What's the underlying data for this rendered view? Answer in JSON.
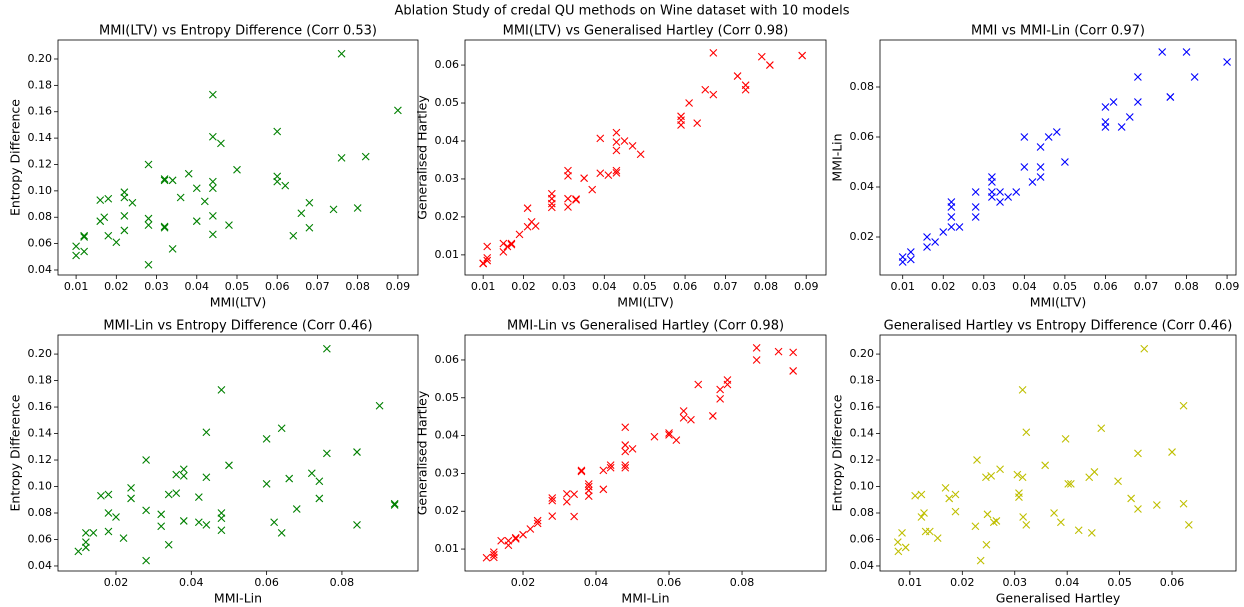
{
  "title": "Ablation Study of credal QU methods on Wine dataset with 10 models",
  "chart_data": [
    {
      "type": "scatter",
      "title": "MMI(LTV) vs Entropy Difference (Corr 0.53)",
      "x_label": "MMI(LTV)",
      "y_label": "Entropy Difference",
      "color": "#008000",
      "x": [
        0.01,
        0.01,
        0.012,
        0.012,
        0.012,
        0.016,
        0.016,
        0.017,
        0.018,
        0.018,
        0.02,
        0.022,
        0.022,
        0.022,
        0.022,
        0.024,
        0.028,
        0.028,
        0.028,
        0.028,
        0.032,
        0.032,
        0.032,
        0.032,
        0.034,
        0.034,
        0.036,
        0.038,
        0.04,
        0.04,
        0.042,
        0.044,
        0.044,
        0.044,
        0.044,
        0.044,
        0.044,
        0.046,
        0.048,
        0.05,
        0.06,
        0.06,
        0.06,
        0.062,
        0.064,
        0.066,
        0.068,
        0.068,
        0.074,
        0.076,
        0.076,
        0.08,
        0.082,
        0.09
      ],
      "values": [
        0.058,
        0.051,
        0.065,
        0.054,
        0.066,
        0.077,
        0.093,
        0.08,
        0.094,
        0.066,
        0.061,
        0.099,
        0.095,
        0.081,
        0.07,
        0.091,
        0.12,
        0.079,
        0.074,
        0.044,
        0.108,
        0.109,
        0.073,
        0.072,
        0.108,
        0.056,
        0.095,
        0.113,
        0.102,
        0.077,
        0.092,
        0.173,
        0.141,
        0.107,
        0.102,
        0.081,
        0.067,
        0.136,
        0.074,
        0.116,
        0.145,
        0.111,
        0.107,
        0.104,
        0.066,
        0.083,
        0.091,
        0.072,
        0.086,
        0.204,
        0.125,
        0.087,
        0.126,
        0.161
      ],
      "xlim": [
        0.0055,
        0.095
      ],
      "ylim": [
        0.0362,
        0.2144
      ],
      "xticks": [
        0.01,
        0.02,
        0.03,
        0.04,
        0.05,
        0.06,
        0.07,
        0.08,
        0.09
      ],
      "yticks": [
        0.04,
        0.06,
        0.08,
        {
          "value": 0.1,
          "label": "0.10"
        },
        0.12,
        0.14,
        0.16,
        0.18,
        {
          "value": 0.2,
          "label": "0.20"
        }
      ]
    },
    {
      "type": "scatter",
      "title": "MMI(LTV) vs Generalised Hartley (Corr 0.98)",
      "x_label": "MMI(LTV)",
      "y_label": "Generalised Hartley",
      "color": "#ff0000",
      "x": [
        0.01,
        0.01,
        0.011,
        0.011,
        0.011,
        0.015,
        0.015,
        0.016,
        0.017,
        0.017,
        0.019,
        0.021,
        0.021,
        0.022,
        0.023,
        0.027,
        0.027,
        0.027,
        0.027,
        0.031,
        0.031,
        0.031,
        0.031,
        0.033,
        0.033,
        0.035,
        0.037,
        0.039,
        0.039,
        0.041,
        0.043,
        0.043,
        0.043,
        0.043,
        0.043,
        0.045,
        0.047,
        0.049,
        0.059,
        0.059,
        0.059,
        0.061,
        0.063,
        0.065,
        0.067,
        0.067,
        0.073,
        0.075,
        0.075,
        0.079,
        0.081,
        0.089
      ],
      "values": [
        0.0077,
        0.0078,
        0.0085,
        0.0092,
        0.0122,
        0.0108,
        0.013,
        0.0122,
        0.0127,
        0.013,
        0.0154,
        0.0174,
        0.0223,
        0.0187,
        0.0176,
        0.0225,
        0.0235,
        0.0248,
        0.0261,
        0.0226,
        0.0248,
        0.0308,
        0.0322,
        0.0245,
        0.0247,
        0.0302,
        0.0272,
        0.0315,
        0.0407,
        0.031,
        0.0316,
        0.0322,
        0.0375,
        0.0397,
        0.0422,
        0.04,
        0.0387,
        0.0365,
        0.0442,
        0.0455,
        0.0465,
        0.05,
        0.0447,
        0.0535,
        0.0522,
        0.0632,
        0.0571,
        0.0535,
        0.0547,
        0.0622,
        0.06,
        0.0625
      ],
      "xlim": [
        0.0055,
        0.0949
      ],
      "ylim": [
        0.0047,
        0.0666
      ],
      "xticks": [
        0.01,
        0.02,
        0.03,
        0.04,
        0.05,
        0.06,
        0.07,
        0.08,
        0.09
      ],
      "yticks": [
        0.01,
        0.02,
        0.03,
        0.04,
        0.05,
        0.06
      ]
    },
    {
      "type": "scatter",
      "title": "MMI vs MMI-Lin (Corr 0.97)",
      "x_label": "MMI(LTV)",
      "y_label": "MMI-Lin",
      "color": "#0000ff",
      "x": [
        0.01,
        0.01,
        0.012,
        0.012,
        0.016,
        0.016,
        0.018,
        0.02,
        0.022,
        0.022,
        0.022,
        0.022,
        0.024,
        0.028,
        0.028,
        0.028,
        0.032,
        0.032,
        0.032,
        0.032,
        0.034,
        0.034,
        0.036,
        0.038,
        0.04,
        0.04,
        0.042,
        0.044,
        0.044,
        0.044,
        0.046,
        0.048,
        0.05,
        0.06,
        0.06,
        0.06,
        0.062,
        0.064,
        0.066,
        0.068,
        0.068,
        0.074,
        0.076,
        0.076,
        0.08,
        0.082,
        0.09
      ],
      "values": [
        0.01,
        0.012,
        0.011,
        0.014,
        0.016,
        0.02,
        0.018,
        0.022,
        0.024,
        0.028,
        0.032,
        0.034,
        0.024,
        0.028,
        0.032,
        0.038,
        0.036,
        0.038,
        0.042,
        0.044,
        0.034,
        0.038,
        0.036,
        0.038,
        0.048,
        0.06,
        0.042,
        0.044,
        0.048,
        0.056,
        0.06,
        0.062,
        0.05,
        0.064,
        0.066,
        0.072,
        0.074,
        0.064,
        0.068,
        0.074,
        0.084,
        0.094,
        0.076,
        0.076,
        0.094,
        0.084,
        0.09
      ],
      "xlim": [
        0.0044,
        0.0922
      ],
      "ylim": [
        0.0048,
        0.0988
      ],
      "xticks": [
        0.01,
        0.02,
        0.03,
        0.04,
        0.05,
        0.06,
        0.07,
        0.08,
        0.09
      ],
      "yticks": [
        0.02,
        0.04,
        0.06,
        0.08
      ]
    },
    {
      "type": "scatter",
      "title": "MMI-Lin vs Entropy Difference (Corr 0.46)",
      "x_label": "MMI-Lin",
      "y_label": "Entropy Difference",
      "color": "#008000",
      "x": [
        0.01,
        0.012,
        0.012,
        0.012,
        0.014,
        0.016,
        0.018,
        0.018,
        0.018,
        0.02,
        0.022,
        0.024,
        0.024,
        0.028,
        0.028,
        0.028,
        0.032,
        0.032,
        0.034,
        0.034,
        0.036,
        0.036,
        0.038,
        0.038,
        0.038,
        0.042,
        0.042,
        0.044,
        0.044,
        0.044,
        0.048,
        0.048,
        0.048,
        0.048,
        0.05,
        0.06,
        0.06,
        0.062,
        0.064,
        0.064,
        0.066,
        0.068,
        0.072,
        0.074,
        0.074,
        0.076,
        0.076,
        0.084,
        0.084,
        0.09,
        0.094,
        0.094
      ],
      "values": [
        0.051,
        0.054,
        0.058,
        0.065,
        0.065,
        0.093,
        0.08,
        0.094,
        0.066,
        0.077,
        0.061,
        0.099,
        0.091,
        0.12,
        0.082,
        0.044,
        0.079,
        0.07,
        0.056,
        0.094,
        0.109,
        0.095,
        0.113,
        0.108,
        0.074,
        0.092,
        0.073,
        0.141,
        0.107,
        0.071,
        0.173,
        0.08,
        0.076,
        0.067,
        0.116,
        0.136,
        0.102,
        0.073,
        0.144,
        0.065,
        0.106,
        0.083,
        0.11,
        0.104,
        0.091,
        0.125,
        0.204,
        0.126,
        0.071,
        0.161,
        0.087,
        0.086
      ],
      "xlim": [
        0.0046,
        0.1002
      ],
      "ylim": [
        0.0362,
        0.2144
      ],
      "xticks": [
        0.02,
        0.04,
        0.06,
        0.08
      ],
      "yticks": [
        0.04,
        0.06,
        0.08,
        {
          "value": 0.1,
          "label": "0.10"
        },
        0.12,
        0.14,
        0.16,
        0.18,
        {
          "value": 0.2,
          "label": "0.20"
        }
      ]
    },
    {
      "type": "scatter",
      "title": "MMI-Lin vs Generalised Hartley (Corr 0.98)",
      "x_label": "MMI-Lin",
      "y_label": "Generalised Hartley",
      "color": "#ff0000",
      "x": [
        0.01,
        0.012,
        0.012,
        0.012,
        0.014,
        0.016,
        0.016,
        0.018,
        0.018,
        0.02,
        0.022,
        0.024,
        0.024,
        0.028,
        0.028,
        0.028,
        0.032,
        0.032,
        0.034,
        0.034,
        0.036,
        0.036,
        0.038,
        0.038,
        0.038,
        0.038,
        0.042,
        0.042,
        0.044,
        0.044,
        0.048,
        0.048,
        0.048,
        0.048,
        0.048,
        0.05,
        0.056,
        0.06,
        0.06,
        0.062,
        0.064,
        0.064,
        0.066,
        0.068,
        0.072,
        0.074,
        0.074,
        0.076,
        0.076,
        0.084,
        0.084,
        0.09,
        0.094,
        0.094
      ],
      "values": [
        0.0077,
        0.0078,
        0.0085,
        0.0092,
        0.0122,
        0.011,
        0.0122,
        0.013,
        0.0127,
        0.0138,
        0.0153,
        0.0168,
        0.0175,
        0.0187,
        0.0228,
        0.0235,
        0.0225,
        0.0246,
        0.0186,
        0.0245,
        0.0305,
        0.0308,
        0.024,
        0.0255,
        0.0265,
        0.0272,
        0.0258,
        0.0308,
        0.0315,
        0.0322,
        0.0315,
        0.0322,
        0.0358,
        0.0375,
        0.0422,
        0.0365,
        0.0397,
        0.0402,
        0.0407,
        0.0388,
        0.0447,
        0.0465,
        0.0442,
        0.0535,
        0.0452,
        0.0497,
        0.0522,
        0.0535,
        0.0547,
        0.06,
        0.0632,
        0.0622,
        0.062,
        0.0571
      ],
      "xlim": [
        0.0041,
        0.103
      ],
      "ylim": [
        0.0042,
        0.0666
      ],
      "xticks": [
        0.02,
        0.04,
        0.06,
        0.08
      ],
      "yticks": [
        0.01,
        0.02,
        0.03,
        0.04,
        0.05,
        0.06
      ]
    },
    {
      "type": "scatter",
      "title": "Generalised Hartley vs Entropy Difference (Corr 0.46)",
      "x_label": "Generalised Hartley",
      "y_label": "Entropy Difference",
      "color": "#bfbf00",
      "x": [
        0.0077,
        0.0078,
        0.0085,
        0.0092,
        0.011,
        0.0122,
        0.0122,
        0.0127,
        0.013,
        0.0138,
        0.0153,
        0.0168,
        0.0175,
        0.0187,
        0.0187,
        0.0225,
        0.0228,
        0.0235,
        0.0245,
        0.0246,
        0.0248,
        0.0255,
        0.026,
        0.0265,
        0.0272,
        0.0305,
        0.0308,
        0.0308,
        0.0315,
        0.0315,
        0.0316,
        0.0322,
        0.0322,
        0.0358,
        0.0375,
        0.0388,
        0.0397,
        0.0402,
        0.0407,
        0.0422,
        0.0442,
        0.0447,
        0.0452,
        0.0465,
        0.0497,
        0.0522,
        0.0535,
        0.0535,
        0.0547,
        0.0571,
        0.06,
        0.0622,
        0.0622,
        0.0632
      ],
      "values": [
        0.058,
        0.051,
        0.065,
        0.054,
        0.093,
        0.094,
        0.077,
        0.08,
        0.066,
        0.066,
        0.061,
        0.099,
        0.091,
        0.081,
        0.094,
        0.07,
        0.12,
        0.044,
        0.107,
        0.056,
        0.079,
        0.108,
        0.073,
        0.074,
        0.113,
        0.109,
        0.095,
        0.092,
        0.173,
        0.107,
        0.077,
        0.141,
        0.071,
        0.116,
        0.08,
        0.073,
        0.136,
        0.102,
        0.102,
        0.067,
        0.107,
        0.065,
        0.111,
        0.144,
        0.104,
        0.091,
        0.125,
        0.083,
        0.204,
        0.086,
        0.126,
        0.087,
        0.161,
        0.071
      ],
      "xlim": [
        0.0043,
        0.0722
      ],
      "ylim": [
        0.0362,
        0.2144
      ],
      "xticks": [
        0.01,
        0.02,
        0.03,
        0.04,
        0.05,
        0.06
      ],
      "yticks": [
        0.04,
        0.06,
        0.08,
        {
          "value": 0.1,
          "label": "0.10"
        },
        0.12,
        0.14,
        0.16,
        0.18,
        {
          "value": 0.2,
          "label": "0.20"
        }
      ]
    }
  ]
}
